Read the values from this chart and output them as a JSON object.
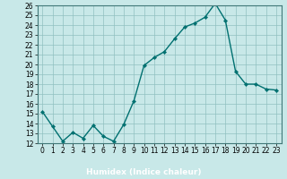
{
  "x": [
    0,
    1,
    2,
    3,
    4,
    5,
    6,
    7,
    8,
    9,
    10,
    11,
    12,
    13,
    14,
    15,
    16,
    17,
    18,
    19,
    20,
    21,
    22,
    23
  ],
  "y": [
    15.2,
    13.7,
    12.2,
    13.1,
    12.5,
    13.8,
    12.7,
    12.2,
    13.9,
    16.3,
    19.9,
    20.7,
    21.3,
    22.6,
    23.8,
    24.2,
    24.8,
    26.2,
    24.5,
    19.3,
    18.0,
    18.0,
    17.5,
    17.4
  ],
  "line_color": "#007070",
  "marker": "D",
  "marker_size": 2.2,
  "bg_color": "#c8e8e8",
  "plot_bg_color": "#c8e8e8",
  "grid_color": "#90c0c0",
  "xlabel": "Humidex (Indice chaleur)",
  "xlim": [
    -0.5,
    23.5
  ],
  "ylim": [
    12,
    26
  ],
  "xticks": [
    0,
    1,
    2,
    3,
    4,
    5,
    6,
    7,
    8,
    9,
    10,
    11,
    12,
    13,
    14,
    15,
    16,
    17,
    18,
    19,
    20,
    21,
    22,
    23
  ],
  "yticks": [
    12,
    13,
    14,
    15,
    16,
    17,
    18,
    19,
    20,
    21,
    22,
    23,
    24,
    25,
    26
  ],
  "xlabel_fontsize": 6.5,
  "tick_fontsize": 5.5,
  "line_width": 1.0,
  "bottom_bar_color": "#407878",
  "spine_color": "#407878"
}
